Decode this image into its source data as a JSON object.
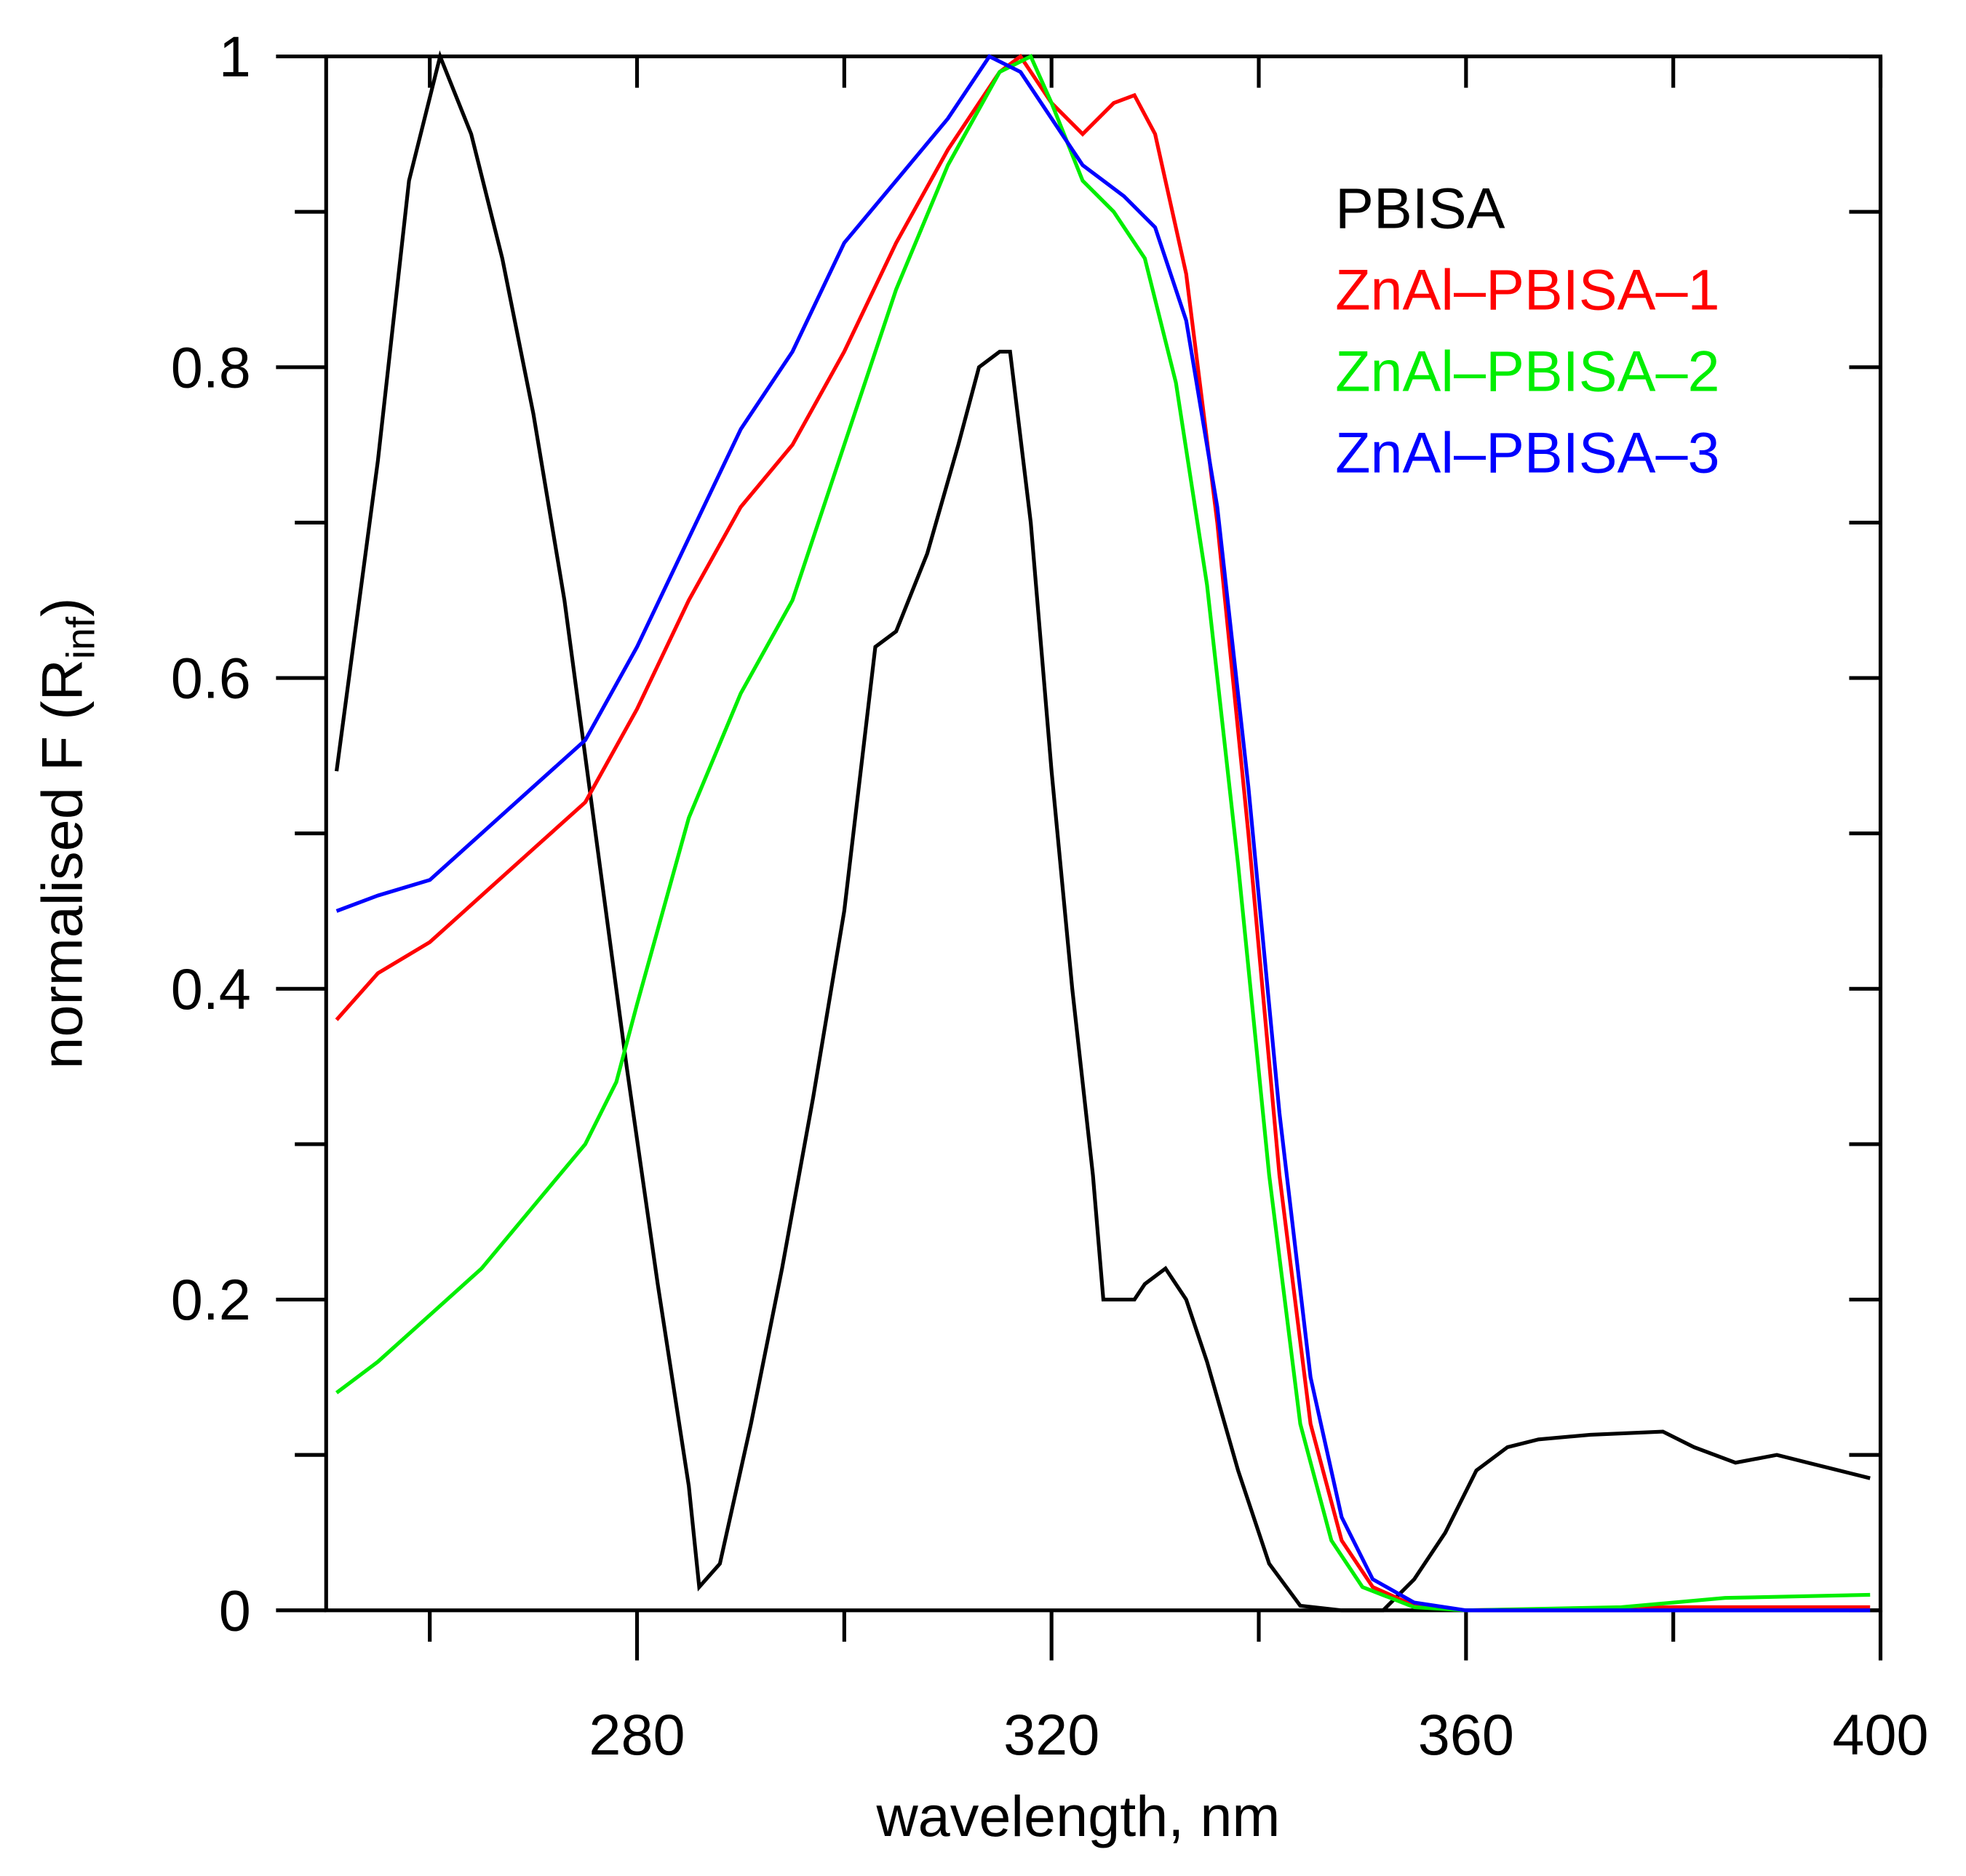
{
  "chart_data": {
    "type": "line",
    "xlabel": "wavelength, nm",
    "ylabel": {
      "text": "normalised F (R",
      "subscript": "inf",
      "suffix": ")"
    },
    "xlim": [
      250,
      400
    ],
    "xticks": [
      280,
      320,
      360,
      400
    ],
    "xminor_ticks": [
      260,
      300,
      340,
      380
    ],
    "ylim": [
      0,
      1
    ],
    "yticks": [
      0,
      0.2,
      0.4,
      0.6,
      0.8,
      1
    ],
    "yminor_ticks": [
      0.1,
      0.3,
      0.5,
      0.7,
      0.9
    ],
    "legend": "top-right",
    "series": [
      {
        "name": "PBISA",
        "color": "#000000",
        "x": [
          251,
          255,
          258,
          261,
          264,
          267,
          270,
          273,
          276,
          279,
          282,
          285,
          286,
          288,
          291,
          294,
          297,
          300,
          303,
          305,
          308,
          311,
          313,
          315,
          316,
          318,
          320,
          322,
          324,
          325,
          328,
          329,
          331,
          333,
          335,
          338,
          341,
          344,
          348,
          352,
          355,
          358,
          361,
          364,
          367,
          372,
          379,
          382,
          386,
          390,
          393,
          396,
          399
        ],
        "values": [
          0.54,
          0.74,
          0.92,
          1.0,
          0.95,
          0.87,
          0.77,
          0.65,
          0.5,
          0.35,
          0.21,
          0.08,
          0.015,
          0.03,
          0.12,
          0.22,
          0.33,
          0.45,
          0.62,
          0.63,
          0.68,
          0.75,
          0.8,
          0.81,
          0.81,
          0.7,
          0.54,
          0.4,
          0.28,
          0.2,
          0.2,
          0.21,
          0.22,
          0.2,
          0.16,
          0.09,
          0.03,
          0.003,
          0,
          0,
          0.02,
          0.05,
          0.09,
          0.105,
          0.11,
          0.113,
          0.115,
          0.105,
          0.095,
          0.1,
          0.095,
          0.09,
          0.085
        ]
      },
      {
        "name": "ZnAl–PBISA–1",
        "color": "#ff0000",
        "x": [
          251,
          255,
          260,
          265,
          270,
          275,
          280,
          285,
          290,
          295,
          300,
          305,
          310,
          315,
          317,
          320,
          323,
          326,
          328,
          330,
          333,
          336,
          339,
          342,
          345,
          348,
          351,
          355,
          360,
          380,
          399
        ],
        "values": [
          0.38,
          0.41,
          0.43,
          0.46,
          0.49,
          0.52,
          0.58,
          0.65,
          0.71,
          0.75,
          0.81,
          0.88,
          0.94,
          0.99,
          1.0,
          0.97,
          0.95,
          0.97,
          0.975,
          0.95,
          0.86,
          0.7,
          0.5,
          0.28,
          0.12,
          0.045,
          0.015,
          0.003,
          0,
          0.002,
          0.002
        ]
      },
      {
        "name": "ZnAl–PBISA–2",
        "color": "#00ee00",
        "x": [
          251,
          255,
          260,
          265,
          270,
          275,
          278,
          280,
          285,
          290,
          295,
          300,
          305,
          310,
          315,
          318,
          320,
          323,
          326,
          329,
          332,
          335,
          338,
          341,
          344,
          347,
          350,
          355,
          360,
          375,
          385,
          399
        ],
        "values": [
          0.14,
          0.16,
          0.19,
          0.22,
          0.26,
          0.3,
          0.34,
          0.39,
          0.51,
          0.59,
          0.65,
          0.75,
          0.85,
          0.93,
          0.99,
          1.0,
          0.97,
          0.92,
          0.9,
          0.87,
          0.79,
          0.66,
          0.48,
          0.28,
          0.12,
          0.045,
          0.015,
          0.002,
          0,
          0.002,
          0.008,
          0.01
        ]
      },
      {
        "name": "ZnAl–PBISA–3",
        "color": "#0000ff",
        "x": [
          251,
          255,
          260,
          265,
          270,
          275,
          280,
          285,
          290,
          295,
          300,
          305,
          310,
          314,
          317,
          320,
          323,
          327,
          330,
          333,
          336,
          339,
          342,
          345,
          348,
          351,
          355,
          360,
          399
        ],
        "values": [
          0.45,
          0.46,
          0.47,
          0.5,
          0.53,
          0.56,
          0.62,
          0.69,
          0.76,
          0.81,
          0.88,
          0.92,
          0.96,
          1.0,
          0.99,
          0.96,
          0.93,
          0.91,
          0.89,
          0.83,
          0.71,
          0.53,
          0.32,
          0.15,
          0.06,
          0.02,
          0.005,
          0,
          0
        ]
      }
    ]
  }
}
